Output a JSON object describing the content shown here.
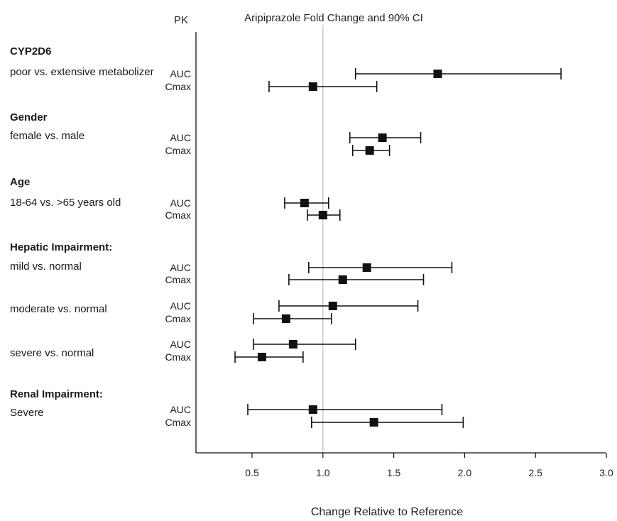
{
  "chart_data": {
    "type": "forest",
    "title": "Aripiprazole Fold Change and 90% CI",
    "column_header": "PK",
    "xlabel": "Change Relative to Reference",
    "xlim": [
      0.1,
      3.0
    ],
    "xticks": [
      0.5,
      1.0,
      1.5,
      2.0,
      2.5,
      3.0
    ],
    "xtick_labels": [
      "0.5",
      "1.0",
      "1.5",
      "2.0",
      "2.5",
      "3.0"
    ],
    "reference_line": 1.0,
    "groups": [
      {
        "title": "CYP2D6",
        "subgroups": [
          {
            "label": "poor vs. extensive metabolizer",
            "rows": [
              {
                "pk": "AUC",
                "estimate": 1.81,
                "lower": 1.23,
                "upper": 2.68
              },
              {
                "pk": "Cmax",
                "estimate": 0.93,
                "lower": 0.62,
                "upper": 1.38
              }
            ]
          }
        ]
      },
      {
        "title": "Gender",
        "subgroups": [
          {
            "label": "female vs. male",
            "rows": [
              {
                "pk": "AUC",
                "estimate": 1.42,
                "lower": 1.19,
                "upper": 1.69
              },
              {
                "pk": "Cmax",
                "estimate": 1.33,
                "lower": 1.21,
                "upper": 1.47
              }
            ]
          }
        ]
      },
      {
        "title": "Age",
        "subgroups": [
          {
            "label": "18-64 vs. >65 years old",
            "rows": [
              {
                "pk": "AUC",
                "estimate": 0.87,
                "lower": 0.73,
                "upper": 1.04
              },
              {
                "pk": "Cmax",
                "estimate": 1.0,
                "lower": 0.89,
                "upper": 1.12
              }
            ]
          }
        ]
      },
      {
        "title": "Hepatic Impairment:",
        "subgroups": [
          {
            "label": "mild vs. normal",
            "rows": [
              {
                "pk": "AUC",
                "estimate": 1.31,
                "lower": 0.9,
                "upper": 1.91
              },
              {
                "pk": "Cmax",
                "estimate": 1.14,
                "lower": 0.76,
                "upper": 1.71
              }
            ]
          },
          {
            "label": "moderate vs. normal",
            "rows": [
              {
                "pk": "AUC",
                "estimate": 1.07,
                "lower": 0.69,
                "upper": 1.67
              },
              {
                "pk": "Cmax",
                "estimate": 0.74,
                "lower": 0.51,
                "upper": 1.06
              }
            ]
          },
          {
            "label": "severe vs. normal",
            "rows": [
              {
                "pk": "AUC",
                "estimate": 0.79,
                "lower": 0.51,
                "upper": 1.23
              },
              {
                "pk": "Cmax",
                "estimate": 0.57,
                "lower": 0.38,
                "upper": 0.86
              }
            ]
          }
        ]
      },
      {
        "title": "Renal Impairment:",
        "subgroups": [
          {
            "label": "Severe",
            "rows": [
              {
                "pk": "AUC",
                "estimate": 0.93,
                "lower": 0.47,
                "upper": 1.84
              },
              {
                "pk": "Cmax",
                "estimate": 1.36,
                "lower": 0.92,
                "upper": 1.99
              }
            ]
          }
        ]
      }
    ],
    "colors": {
      "marker": "#111111",
      "ci_line": "#111111",
      "reference_line": "#bdbdbd",
      "axis": "#111111"
    }
  }
}
